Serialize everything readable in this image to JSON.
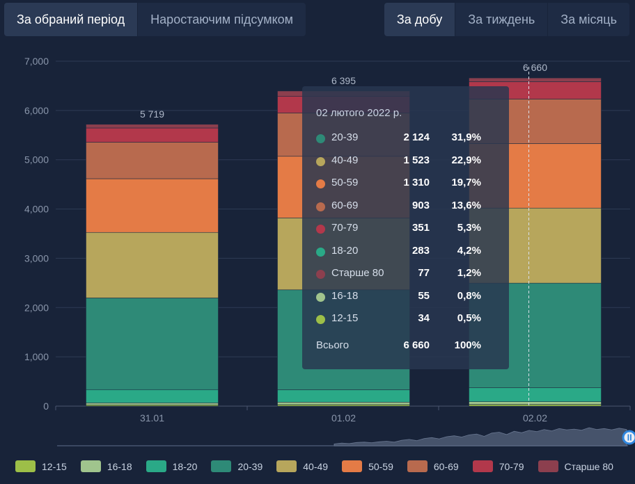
{
  "tabs_left": [
    {
      "label": "За обраний період",
      "active": true
    },
    {
      "label": "Наростаючим підсумком",
      "active": false
    }
  ],
  "tabs_right": [
    {
      "label": "За добу",
      "active": true
    },
    {
      "label": "За тиждень",
      "active": false
    },
    {
      "label": "За місяць",
      "active": false
    }
  ],
  "chart_data": {
    "type": "bar",
    "stacked": true,
    "categories": [
      "31.01",
      "01.02",
      "02.02"
    ],
    "ylim": [
      0,
      7000
    ],
    "yticks": [
      "0",
      "1,000",
      "2,000",
      "3,000",
      "4,000",
      "5,000",
      "6,000",
      "7,000"
    ],
    "ytick_values": [
      0,
      1000,
      2000,
      3000,
      4000,
      5000,
      6000,
      7000
    ],
    "totals": [
      5719,
      6395,
      6660
    ],
    "total_labels": [
      "5 719",
      "6 395",
      "6 660"
    ],
    "series": [
      {
        "name": "12-15",
        "color": "#9dbf48",
        "values": [
          25,
          30,
          34
        ]
      },
      {
        "name": "16-18",
        "color": "#a0c48d",
        "values": [
          40,
          50,
          55
        ]
      },
      {
        "name": "18-20",
        "color": "#2aa987",
        "values": [
          270,
          250,
          283
        ]
      },
      {
        "name": "20-39",
        "color": "#2e8a77",
        "values": [
          1860,
          2030,
          2124
        ]
      },
      {
        "name": "40-49",
        "color": "#b7a65c",
        "values": [
          1330,
          1460,
          1523
        ]
      },
      {
        "name": "50-59",
        "color": "#e47b46",
        "values": [
          1090,
          1250,
          1310
        ]
      },
      {
        "name": "60-69",
        "color": "#b86a4e",
        "values": [
          740,
          880,
          903
        ]
      },
      {
        "name": "70-79",
        "color": "#b2384b",
        "values": [
          290,
          340,
          351
        ]
      },
      {
        "name": "Старше 80",
        "color": "#8c3f4e",
        "values": [
          74,
          105,
          77
        ]
      }
    ],
    "grid": true,
    "legend": "bottom"
  },
  "tooltip": {
    "date": "02 лютого 2022 р.",
    "rows": [
      {
        "label": "20-39",
        "value": "2 124",
        "pct": "31,9%",
        "color": "#2e8a77"
      },
      {
        "label": "40-49",
        "value": "1 523",
        "pct": "22,9%",
        "color": "#b7a65c"
      },
      {
        "label": "50-59",
        "value": "1 310",
        "pct": "19,7%",
        "color": "#e47b46"
      },
      {
        "label": "60-69",
        "value": "903",
        "pct": "13,6%",
        "color": "#b86a4e"
      },
      {
        "label": "70-79",
        "value": "351",
        "pct": "5,3%",
        "color": "#b2384b"
      },
      {
        "label": "18-20",
        "value": "283",
        "pct": "4,2%",
        "color": "#2aa987"
      },
      {
        "label": "Старше 80",
        "value": "77",
        "pct": "1,2%",
        "color": "#8c3f4e"
      },
      {
        "label": "16-18",
        "value": "55",
        "pct": "0,8%",
        "color": "#a0c48d"
      },
      {
        "label": "12-15",
        "value": "34",
        "pct": "0,5%",
        "color": "#9dbf48"
      }
    ],
    "total_label": "Всього",
    "total_value": "6 660",
    "total_pct": "100%"
  },
  "navigator": {
    "series": [
      0.1,
      0.15,
      0.12,
      0.18,
      0.2,
      0.17,
      0.22,
      0.25,
      0.2,
      0.3,
      0.35,
      0.28,
      0.4,
      0.45,
      0.38,
      0.5,
      0.55,
      0.48,
      0.6,
      0.65,
      0.52,
      0.7,
      0.75,
      0.62,
      0.8,
      0.72,
      0.85,
      0.78,
      0.9,
      0.82,
      0.95,
      0.88,
      0.92,
      0.86,
      1.0,
      0.9,
      0.95,
      0.88,
      0.97,
      0.9
    ],
    "handle_icon": "pause-icon"
  },
  "colors": {
    "background": "#182339",
    "grid": "#2e3b55",
    "axis_text": "#8a96ab",
    "accent": "#2f86de"
  }
}
